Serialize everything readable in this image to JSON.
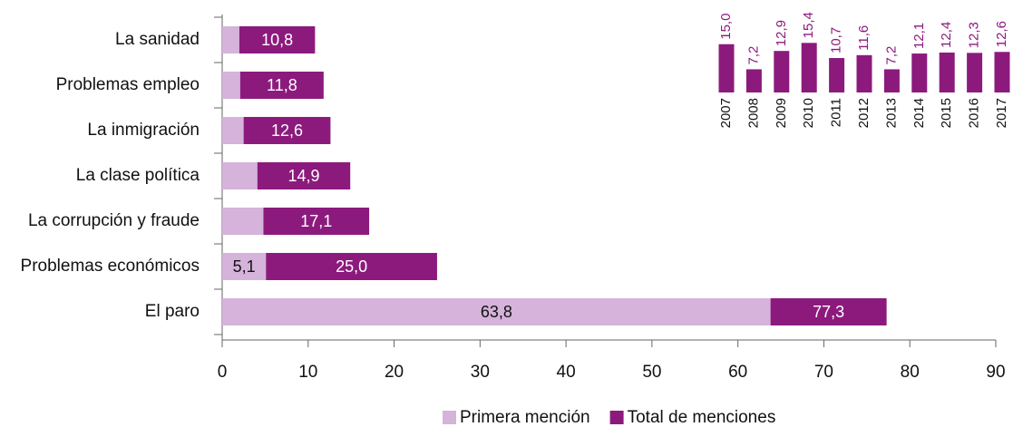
{
  "chart_data": [
    {
      "type": "hbar",
      "categories": [
        "La sanidad",
        "Problemas empleo",
        "La inmigración",
        "La clase política",
        "La corrupción y fraude",
        "Problemas económicos",
        "El paro"
      ],
      "series": [
        {
          "name": "Primera mención",
          "color": "#d5b3da",
          "values": [
            2.0,
            2.1,
            2.5,
            4.1,
            4.8,
            5.1,
            63.8
          ],
          "value_labels": [
            null,
            null,
            null,
            null,
            null,
            "5,1",
            "63,8"
          ]
        },
        {
          "name": "Total de menciones",
          "color": "#8c1a7d",
          "values": [
            10.8,
            11.8,
            12.6,
            14.9,
            17.1,
            25.0,
            77.3
          ],
          "value_labels": [
            "10,8",
            "11,8",
            "12,6",
            "14,9",
            "17,1",
            "25,0",
            "77,3"
          ]
        }
      ],
      "xlim": [
        0,
        90
      ],
      "xticks": [
        0,
        10,
        20,
        30,
        40,
        50,
        60,
        70,
        80,
        90
      ],
      "legend": "bottom"
    },
    {
      "type": "bar",
      "categories": [
        "2007",
        "2008",
        "2009",
        "2010",
        "2011",
        "2012",
        "2013",
        "2014",
        "2015",
        "2016",
        "2017"
      ],
      "values": [
        15.0,
        7.2,
        12.9,
        15.4,
        10.7,
        11.6,
        7.2,
        12.1,
        12.4,
        12.3,
        12.6
      ],
      "value_labels": [
        "15,0",
        "7,2",
        "12,9",
        "15,4",
        "10,7",
        "11,6",
        "7,2",
        "12,1",
        "12,4",
        "12,3",
        "12,6"
      ],
      "color": "#8c1a7d"
    }
  ]
}
